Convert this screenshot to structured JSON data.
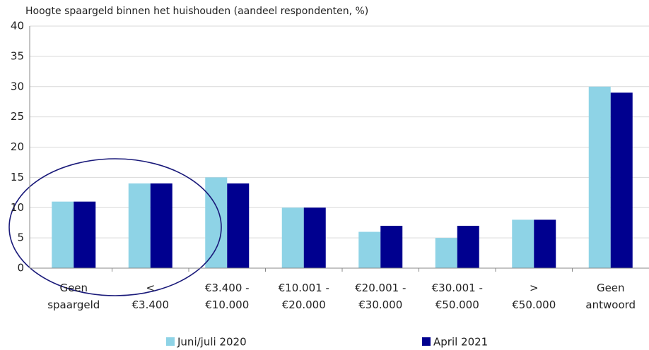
{
  "chart_data": {
    "type": "bar",
    "title": "Hoogte spaargeld binnen het huishouden (aandeel respondenten, %)",
    "categories": [
      "Geen spaargeld",
      "< €3.400",
      "€3.400 - €10.000",
      "€10.001 - €20.000",
      "€20.001 - €30.000",
      "€30.001 - €50.000",
      "> €50.000",
      "Geen antwoord"
    ],
    "series": [
      {
        "name": "Juni/juli 2020",
        "color": "#8ed3e6",
        "values": [
          11,
          14,
          15,
          10,
          6,
          5,
          8,
          30
        ]
      },
      {
        "name": "April 2021",
        "color": "#00008f",
        "values": [
          11,
          14,
          14,
          10,
          7,
          7,
          8,
          29
        ]
      }
    ],
    "ylim": [
      0,
      40
    ],
    "yticks": [
      0,
      5,
      10,
      15,
      20,
      25,
      30,
      35,
      40
    ],
    "grid": true
  }
}
